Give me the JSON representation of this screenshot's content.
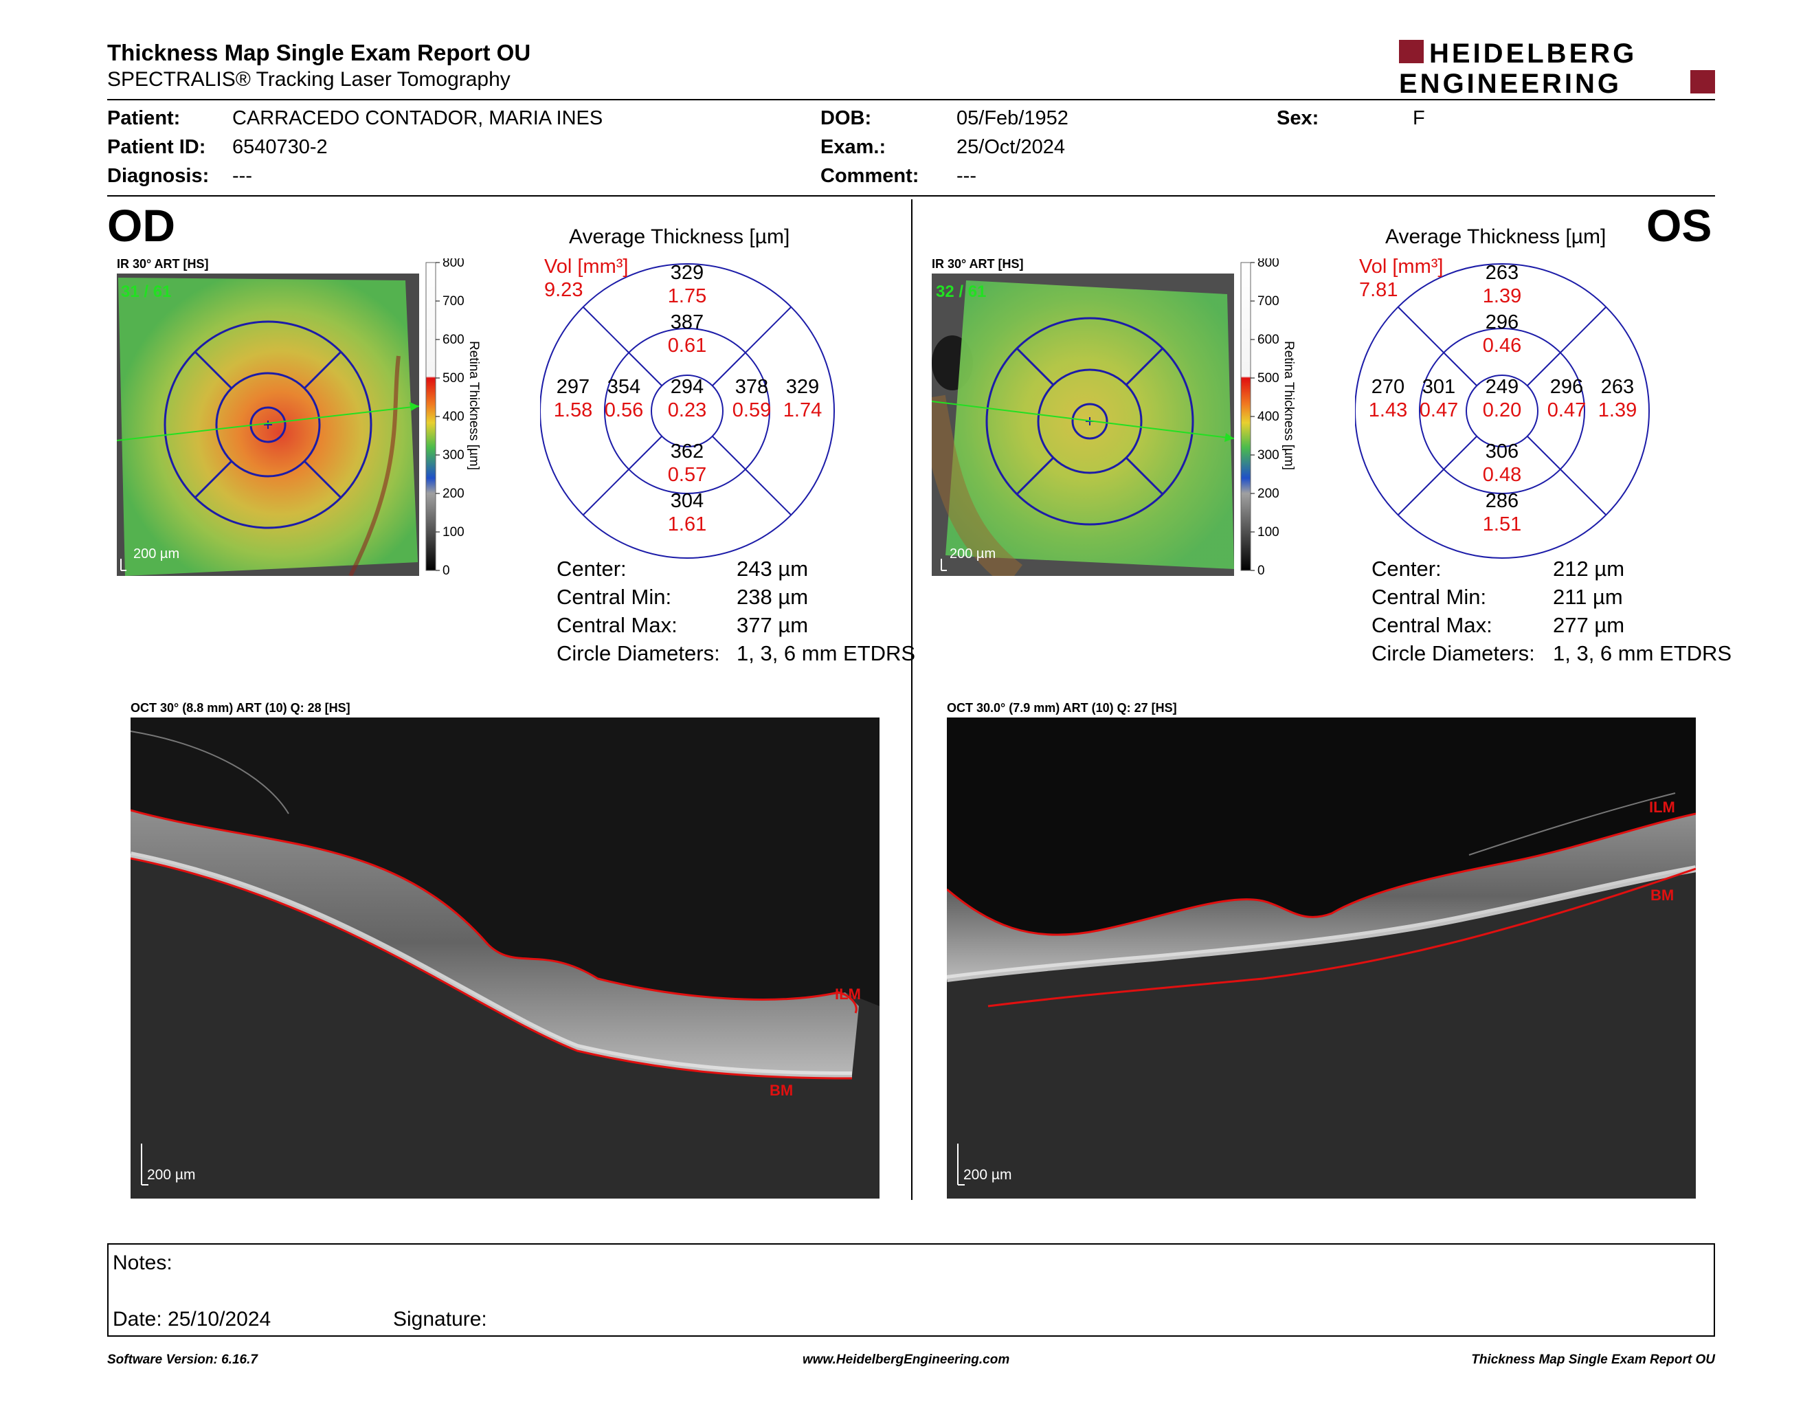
{
  "header": {
    "title": "Thickness Map Single Exam Report OU",
    "subtitle": "SPECTRALIS® Tracking Laser Tomography",
    "logo_line1": "HEIDELBERG",
    "logo_line2": "ENGINEERING",
    "brand_color": "#8b1a2b"
  },
  "patient": {
    "patient_label": "Patient:",
    "patient_value": "CARRACEDO CONTADOR, MARIA INES",
    "id_label": "Patient ID:",
    "id_value": "6540730-2",
    "diagnosis_label": "Diagnosis:",
    "diagnosis_value": "---",
    "dob_label": "DOB:",
    "dob_value": "05/Feb/1952",
    "exam_label": "Exam.:",
    "exam_value": "25/Oct/2024",
    "comment_label": "Comment:",
    "comment_value": "---",
    "sex_label": "Sex:",
    "sex_value": "F"
  },
  "od": {
    "eye": "OD",
    "ir_caption": "IR 30° ART [HS]",
    "frames": "31 / 61",
    "scale": "200 µm",
    "avg_title": "Average Thickness [µm]",
    "vol_label": "Vol [mm³]",
    "vol_value": "9.23",
    "sectors": {
      "outer_sup": {
        "t": "329",
        "v": "1.75"
      },
      "inner_sup": {
        "t": "387",
        "v": "0.61"
      },
      "outer_temp": {
        "t": "297",
        "v": "1.58"
      },
      "inner_temp": {
        "t": "354",
        "v": "0.56"
      },
      "center": {
        "t": "294",
        "v": "0.23"
      },
      "inner_nas": {
        "t": "378",
        "v": "0.59"
      },
      "outer_nas": {
        "t": "329",
        "v": "1.74"
      },
      "inner_inf": {
        "t": "362",
        "v": "0.57"
      },
      "outer_inf": {
        "t": "304",
        "v": "1.61"
      }
    },
    "stats": {
      "center_label": "Center:",
      "center_value": "243 µm",
      "min_label": "Central Min:",
      "min_value": "238 µm",
      "max_label": "Central Max:",
      "max_value": "377 µm",
      "diam_label": "Circle Diameters:",
      "diam_value": "1, 3, 6 mm ETDRS"
    },
    "oct_caption": "OCT 30° (8.8 mm) ART (10) Q: 28 [HS]",
    "oct_scale": "200 µm",
    "ilm": "ILM",
    "bm": "BM"
  },
  "os": {
    "eye": "OS",
    "ir_caption": "IR 30° ART [HS]",
    "frames": "32 / 61",
    "scale": "200 µm",
    "avg_title": "Average Thickness [µm]",
    "vol_label": "Vol [mm³]",
    "vol_value": "7.81",
    "sectors": {
      "outer_sup": {
        "t": "263",
        "v": "1.39"
      },
      "inner_sup": {
        "t": "296",
        "v": "0.46"
      },
      "outer_temp": {
        "t": "270",
        "v": "1.43"
      },
      "inner_temp": {
        "t": "301",
        "v": "0.47"
      },
      "center": {
        "t": "249",
        "v": "0.20"
      },
      "inner_nas": {
        "t": "296",
        "v": "0.47"
      },
      "outer_nas": {
        "t": "263",
        "v": "1.39"
      },
      "inner_inf": {
        "t": "306",
        "v": "0.48"
      },
      "outer_inf": {
        "t": "286",
        "v": "1.51"
      }
    },
    "stats": {
      "center_label": "Center:",
      "center_value": "212 µm",
      "min_label": "Central Min:",
      "min_value": "211 µm",
      "max_label": "Central Max:",
      "max_value": "277 µm",
      "diam_label": "Circle Diameters:",
      "diam_value": "1, 3, 6 mm ETDRS"
    },
    "oct_caption": "OCT 30.0° (7.9 mm) ART (10) Q: 27 [HS]",
    "oct_scale": "200 µm",
    "ilm": "ILM",
    "bm": "BM"
  },
  "colorbar": {
    "ticks": [
      "800",
      "700",
      "600",
      "500",
      "400",
      "300",
      "200",
      "100",
      "0"
    ],
    "title": "Retina Thickness [µm]"
  },
  "notes": {
    "notes_label": "Notes:",
    "date_label": "Date: 25/10/2024",
    "signature_label": "Signature:"
  },
  "footer": {
    "software": "Software Version: 6.16.7",
    "website": "www.HeidelbergEngineering.com",
    "report": "Thickness Map Single Exam Report OU"
  }
}
